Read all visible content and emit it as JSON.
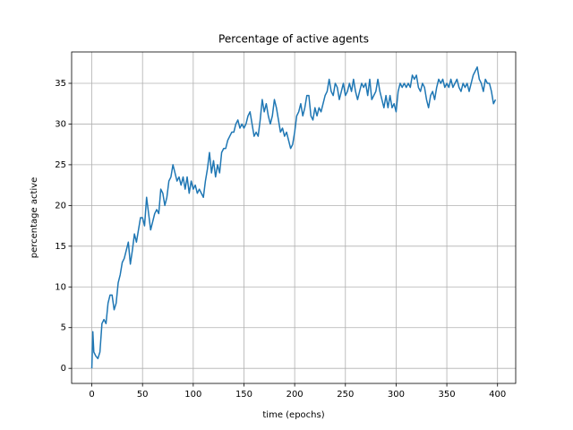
{
  "chart_data": {
    "type": "line",
    "title": "Percentage of active agents",
    "x_label": "time (epochs)",
    "y_label": "percentage active",
    "color": "#1f77b4",
    "grid": true,
    "xlim": [
      -19.9,
      417.9
    ],
    "ylim": [
      -1.85,
      38.85
    ],
    "xticks": [
      0,
      50,
      100,
      150,
      200,
      250,
      300,
      350,
      400
    ],
    "yticks": [
      0,
      5,
      10,
      15,
      20,
      25,
      30,
      35
    ],
    "x": [
      0,
      1,
      2,
      4,
      6,
      8,
      10,
      12,
      14,
      16,
      18,
      20,
      22,
      24,
      26,
      28,
      30,
      32,
      34,
      36,
      38,
      40,
      42,
      44,
      46,
      48,
      50,
      52,
      54,
      56,
      58,
      60,
      62,
      64,
      66,
      68,
      70,
      72,
      74,
      76,
      78,
      80,
      82,
      84,
      86,
      88,
      90,
      92,
      94,
      96,
      98,
      100,
      102,
      104,
      106,
      108,
      110,
      112,
      114,
      116,
      118,
      120,
      122,
      124,
      126,
      128,
      130,
      132,
      134,
      136,
      138,
      140,
      142,
      144,
      146,
      148,
      150,
      152,
      154,
      156,
      158,
      160,
      162,
      164,
      166,
      168,
      170,
      172,
      174,
      176,
      178,
      180,
      182,
      184,
      186,
      188,
      190,
      192,
      194,
      196,
      198,
      200,
      202,
      204,
      206,
      208,
      210,
      212,
      214,
      216,
      218,
      220,
      222,
      224,
      226,
      228,
      230,
      232,
      234,
      236,
      238,
      240,
      242,
      244,
      246,
      248,
      250,
      252,
      254,
      256,
      258,
      260,
      262,
      264,
      266,
      268,
      270,
      272,
      274,
      276,
      278,
      280,
      282,
      284,
      286,
      288,
      290,
      292,
      294,
      296,
      298,
      300,
      302,
      304,
      306,
      308,
      310,
      312,
      314,
      316,
      318,
      320,
      322,
      324,
      326,
      328,
      330,
      332,
      334,
      336,
      338,
      340,
      342,
      344,
      346,
      348,
      350,
      352,
      354,
      356,
      358,
      360,
      362,
      364,
      366,
      368,
      370,
      372,
      374,
      376,
      378,
      380,
      382,
      384,
      386,
      388,
      390,
      392,
      394,
      396,
      398
    ],
    "values": [
      0,
      4.5,
      2,
      1.5,
      1.2,
      2,
      5.5,
      6,
      5.5,
      8,
      9,
      9,
      7.2,
      8,
      10.5,
      11.5,
      13,
      13.5,
      14.5,
      15.5,
      12.8,
      14.5,
      16.5,
      15.5,
      17,
      18.5,
      18.5,
      17.5,
      21,
      19,
      17,
      18,
      19,
      19.5,
      19,
      22,
      21.5,
      20,
      21,
      23,
      23.5,
      25,
      24,
      23,
      23.5,
      22.5,
      23.5,
      22,
      23.5,
      21.5,
      23,
      22,
      22.5,
      21.5,
      22,
      21.5,
      21,
      23,
      24.5,
      26.5,
      24,
      25.5,
      23.5,
      25,
      24,
      26.5,
      27,
      27,
      28,
      28.5,
      29,
      29,
      30,
      30.5,
      29.5,
      30,
      29.5,
      30,
      31,
      31.5,
      30,
      28.5,
      29,
      28.5,
      30.5,
      33,
      31.5,
      32.5,
      31,
      30,
      31,
      33,
      32,
      30.5,
      29,
      29.5,
      28.5,
      29,
      28,
      27,
      27.5,
      29,
      31,
      31.5,
      32.5,
      31,
      32,
      33.5,
      33.5,
      31,
      30.5,
      32,
      31,
      32,
      31.5,
      32.5,
      33.5,
      34,
      35.5,
      34,
      33.5,
      35,
      34.5,
      33,
      34,
      35,
      33.5,
      34,
      35,
      34,
      35.5,
      34,
      33,
      34,
      35,
      34.5,
      35,
      33.5,
      35.5,
      33,
      33.5,
      34,
      35.5,
      34,
      33,
      32,
      33.5,
      32,
      33.5,
      32,
      32.5,
      31.5,
      34,
      35,
      34.5,
      35,
      34.5,
      35,
      34.5,
      36,
      35.5,
      36,
      34.5,
      34,
      35,
      34.5,
      33,
      32,
      33.5,
      34,
      33,
      34.5,
      35.5,
      35,
      35.5,
      34.5,
      35,
      34.5,
      35.5,
      34.5,
      35,
      35.5,
      34.5,
      34,
      35,
      34.5,
      35,
      34,
      35,
      36,
      36.5,
      37,
      35.5,
      35,
      34,
      35.5,
      35,
      35,
      34,
      32.5,
      33
    ]
  }
}
